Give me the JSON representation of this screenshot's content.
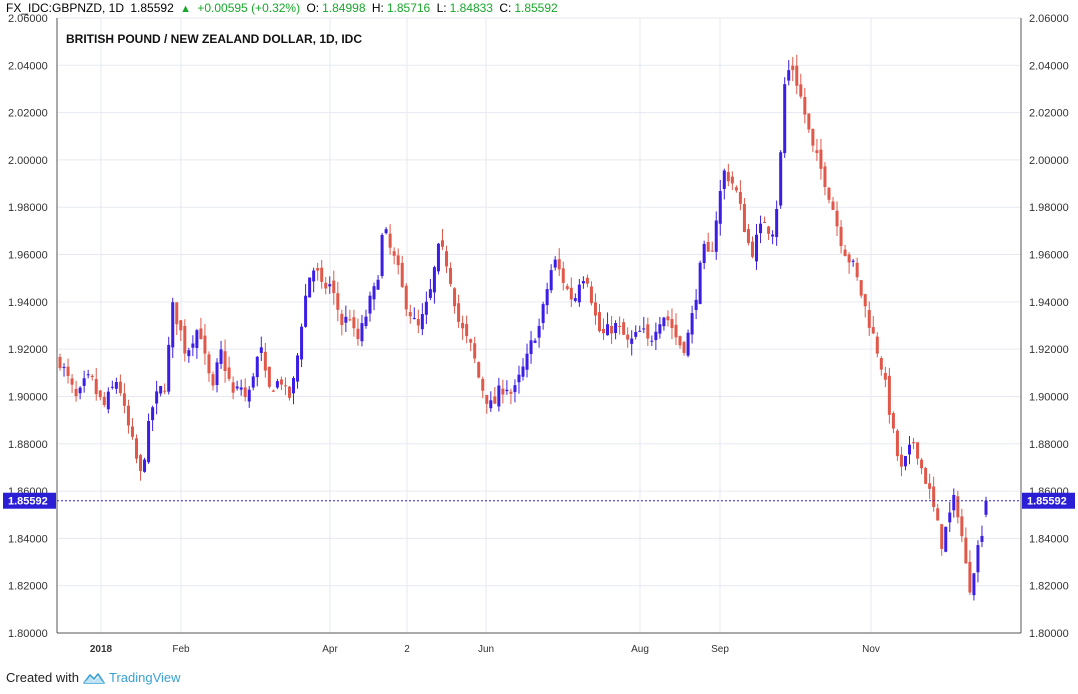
{
  "header": {
    "symbol": "FX_IDC:GBPNZD, 1D",
    "last": "1.85592",
    "change": "+0.00595 (+0.32%)",
    "open_label": "O:",
    "open": "1.84998",
    "high_label": "H:",
    "high": "1.85716",
    "low_label": "L:",
    "low": "1.84833",
    "close_label": "C:",
    "close": "1.85592"
  },
  "footer": {
    "created_with": "Created with",
    "brand": "TradingView"
  },
  "colors": {
    "up": "#3b1ee6",
    "down": "#e0584a",
    "grid": "#e6eaf0",
    "price_line": "#2b1fd6",
    "price_tag": "#2b1fd6"
  },
  "chart_data": {
    "type": "candlestick",
    "title": "BRITISH POUND / NEW ZEALAND DOLLAR, 1D, IDC",
    "last_price": 1.85592,
    "last_price_label": "1.85592",
    "ylim": [
      1.8,
      2.06
    ],
    "y_ticks": [
      "1.80000",
      "1.82000",
      "1.84000",
      "1.86000",
      "1.88000",
      "1.90000",
      "1.92000",
      "1.94000",
      "1.96000",
      "1.98000",
      "2.00000",
      "2.02000",
      "2.04000",
      "2.06000"
    ],
    "x_labels": [
      "2018",
      "Feb",
      "Apr",
      "2",
      "Jun",
      "Aug",
      "Sep",
      "Nov"
    ],
    "grid": true,
    "close_path": [
      [
        0,
        1.915
      ],
      [
        6,
        1.905
      ],
      [
        10,
        1.898
      ],
      [
        14,
        1.905
      ],
      [
        18,
        1.908
      ],
      [
        22,
        1.9
      ],
      [
        26,
        1.896
      ],
      [
        30,
        1.902
      ],
      [
        34,
        1.908
      ],
      [
        38,
        1.893
      ],
      [
        42,
        1.882
      ],
      [
        46,
        1.87
      ],
      [
        48,
        1.865
      ],
      [
        50,
        1.878
      ],
      [
        54,
        1.895
      ],
      [
        58,
        1.902
      ],
      [
        62,
        1.905
      ],
      [
        66,
        1.938
      ],
      [
        70,
        1.93
      ],
      [
        74,
        1.918
      ],
      [
        78,
        1.925
      ],
      [
        82,
        1.93
      ],
      [
        86,
        1.912
      ],
      [
        90,
        1.902
      ],
      [
        94,
        1.92
      ],
      [
        98,
        1.91
      ],
      [
        102,
        1.9
      ],
      [
        106,
        1.905
      ],
      [
        110,
        1.897
      ],
      [
        114,
        1.912
      ],
      [
        118,
        1.92
      ],
      [
        122,
        1.902
      ],
      [
        126,
        1.905
      ],
      [
        130,
        1.907
      ],
      [
        134,
        1.898
      ],
      [
        138,
        1.908
      ],
      [
        142,
        1.932
      ],
      [
        146,
        1.95
      ],
      [
        150,
        1.955
      ],
      [
        154,
        1.945
      ],
      [
        158,
        1.948
      ],
      [
        162,
        1.94
      ],
      [
        166,
        1.93
      ],
      [
        170,
        1.935
      ],
      [
        174,
        1.922
      ],
      [
        178,
        1.93
      ],
      [
        182,
        1.94
      ],
      [
        186,
        1.947
      ],
      [
        190,
        1.972
      ],
      [
        194,
        1.962
      ],
      [
        198,
        1.955
      ],
      [
        202,
        1.942
      ],
      [
        206,
        1.935
      ],
      [
        210,
        1.928
      ],
      [
        214,
        1.935
      ],
      [
        218,
        1.945
      ],
      [
        222,
        1.962
      ],
      [
        226,
        1.96
      ],
      [
        230,
        1.948
      ],
      [
        234,
        1.932
      ],
      [
        238,
        1.925
      ],
      [
        242,
        1.92
      ],
      [
        246,
        1.908
      ],
      [
        250,
        1.9
      ],
      [
        254,
        1.895
      ],
      [
        258,
        1.902
      ],
      [
        262,
        1.905
      ],
      [
        266,
        1.9
      ],
      [
        270,
        1.908
      ],
      [
        274,
        1.915
      ],
      [
        278,
        1.925
      ],
      [
        282,
        1.93
      ],
      [
        286,
        1.945
      ],
      [
        290,
        1.958
      ],
      [
        294,
        1.952
      ],
      [
        298,
        1.945
      ],
      [
        302,
        1.94
      ],
      [
        306,
        1.952
      ],
      [
        310,
        1.95
      ],
      [
        314,
        1.935
      ],
      [
        318,
        1.925
      ],
      [
        322,
        1.928
      ],
      [
        326,
        1.93
      ],
      [
        330,
        1.927
      ],
      [
        334,
        1.922
      ],
      [
        338,
        1.925
      ],
      [
        342,
        1.928
      ],
      [
        346,
        1.922
      ],
      [
        350,
        1.93
      ],
      [
        354,
        1.935
      ],
      [
        358,
        1.932
      ],
      [
        362,
        1.925
      ],
      [
        366,
        1.92
      ],
      [
        370,
        1.928
      ],
      [
        374,
        1.945
      ],
      [
        378,
        1.962
      ],
      [
        382,
        1.958
      ],
      [
        386,
        1.978
      ],
      [
        390,
        1.995
      ],
      [
        394,
        1.992
      ],
      [
        398,
        1.985
      ],
      [
        402,
        1.972
      ],
      [
        406,
        1.96
      ],
      [
        410,
        1.968
      ],
      [
        414,
        1.975
      ],
      [
        418,
        1.968
      ],
      [
        422,
        1.985
      ],
      [
        426,
        2.035
      ],
      [
        430,
        2.04
      ],
      [
        434,
        2.03
      ],
      [
        438,
        2.018
      ],
      [
        442,
        2.005
      ],
      [
        446,
        1.998
      ],
      [
        450,
        1.99
      ],
      [
        454,
        1.98
      ],
      [
        458,
        1.968
      ],
      [
        462,
        1.96
      ],
      [
        466,
        1.955
      ],
      [
        470,
        1.945
      ],
      [
        474,
        1.935
      ],
      [
        478,
        1.925
      ],
      [
        482,
        1.915
      ],
      [
        486,
        1.9
      ],
      [
        490,
        1.882
      ],
      [
        494,
        1.868
      ],
      [
        498,
        1.875
      ],
      [
        502,
        1.882
      ],
      [
        506,
        1.87
      ],
      [
        510,
        1.862
      ],
      [
        514,
        1.85
      ],
      [
        518,
        1.838
      ],
      [
        522,
        1.848
      ],
      [
        526,
        1.858
      ],
      [
        530,
        1.84
      ],
      [
        534,
        1.818
      ],
      [
        538,
        1.832
      ],
      [
        542,
        1.845
      ],
      [
        544,
        1.8559
      ]
    ]
  }
}
